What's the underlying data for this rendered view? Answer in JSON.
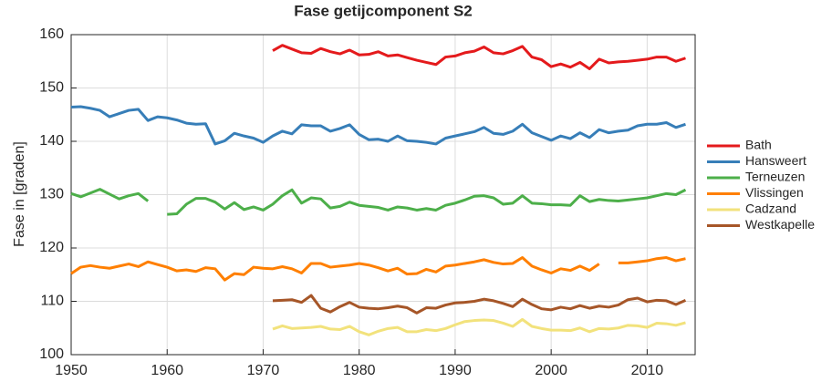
{
  "chart_data": {
    "type": "line",
    "title": "Fase getijcomponent S2",
    "ylabel": "Fase in [graden]",
    "x": [
      1950,
      1951,
      1952,
      1953,
      1954,
      1955,
      1956,
      1957,
      1958,
      1959,
      1960,
      1961,
      1962,
      1963,
      1964,
      1965,
      1966,
      1967,
      1968,
      1969,
      1970,
      1971,
      1972,
      1973,
      1974,
      1975,
      1976,
      1977,
      1978,
      1979,
      1980,
      1981,
      1982,
      1983,
      1984,
      1985,
      1986,
      1987,
      1988,
      1989,
      1990,
      1991,
      1992,
      1993,
      1994,
      1995,
      1996,
      1997,
      1998,
      1999,
      2000,
      2001,
      2002,
      2003,
      2004,
      2005,
      2006,
      2007,
      2008,
      2009,
      2010,
      2011,
      2012,
      2013,
      2014
    ],
    "series": [
      {
        "name": "Bath",
        "color": "#e41a1c",
        "values": [
          null,
          null,
          null,
          null,
          null,
          null,
          null,
          null,
          null,
          null,
          null,
          null,
          null,
          null,
          null,
          null,
          null,
          null,
          null,
          null,
          null,
          157,
          158,
          157.3,
          156.6,
          156.5,
          157.4,
          156.8,
          156.4,
          157.1,
          156.2,
          156.3,
          156.8,
          156,
          156.2,
          155.7,
          155.2,
          154.8,
          154.4,
          155.8,
          156,
          156.6,
          156.9,
          157.7,
          156.6,
          156.4,
          157,
          157.8,
          155.8,
          155.3,
          154,
          154.5,
          153.9,
          154.8,
          153.6,
          155.4,
          154.7,
          154.9,
          155,
          155.2,
          155.4,
          155.8,
          155.8,
          155,
          155.6
        ]
      },
      {
        "name": "Hansweert",
        "color": "#377eb8",
        "values": [
          146.4,
          146.5,
          146.2,
          145.8,
          144.6,
          145.2,
          145.8,
          146,
          143.9,
          144.6,
          144.4,
          144,
          143.4,
          143.2,
          143.3,
          139.5,
          140.1,
          141.5,
          141,
          140.6,
          139.8,
          141,
          141.9,
          141.4,
          143.1,
          142.9,
          142.9,
          141.9,
          142.4,
          143.1,
          141.3,
          140.3,
          140.4,
          140,
          141,
          140.1,
          140,
          139.8,
          139.5,
          140.6,
          141,
          141.4,
          141.8,
          142.6,
          141.5,
          141.3,
          141.9,
          143.2,
          141.6,
          140.9,
          140.2,
          141,
          140.5,
          141.6,
          140.7,
          142.2,
          141.6,
          141.9,
          142.1,
          142.9,
          143.2,
          143.2,
          143.5,
          142.6,
          143.2
        ]
      },
      {
        "name": "Terneuzen",
        "color": "#4daf4a",
        "values": [
          130.2,
          129.6,
          130.3,
          131,
          130.1,
          129.2,
          129.8,
          130.2,
          128.8,
          null,
          126.3,
          126.4,
          128.2,
          129.3,
          129.3,
          128.6,
          127.3,
          128.5,
          127.2,
          127.7,
          127.1,
          128.2,
          129.8,
          130.9,
          128.4,
          129.4,
          129.2,
          127.5,
          127.8,
          128.6,
          128,
          127.8,
          127.6,
          127.1,
          127.7,
          127.5,
          127.1,
          127.4,
          127.1,
          128,
          128.4,
          129,
          129.7,
          129.8,
          129.4,
          128.2,
          128.4,
          129.8,
          128.4,
          128.3,
          128.1,
          128.1,
          128,
          129.8,
          128.7,
          129.1,
          128.9,
          128.8,
          129,
          129.2,
          129.4,
          129.8,
          130.2,
          130,
          130.9
        ]
      },
      {
        "name": "Vlissingen",
        "color": "#ff7f00",
        "values": [
          115.2,
          116.4,
          116.7,
          116.4,
          116.2,
          116.6,
          117,
          116.5,
          117.4,
          116.9,
          116.4,
          115.7,
          115.9,
          115.6,
          116.3,
          116.1,
          114,
          115.2,
          115,
          116.4,
          116.2,
          116.1,
          116.5,
          116.1,
          115.3,
          117.1,
          117.1,
          116.4,
          116.6,
          116.8,
          117.1,
          116.8,
          116.3,
          115.7,
          116.2,
          115.1,
          115.2,
          116,
          115.5,
          116.6,
          116.8,
          117.1,
          117.4,
          117.8,
          117.3,
          117,
          117.1,
          118.2,
          116.6,
          115.9,
          115.3,
          116.1,
          115.8,
          116.6,
          115.8,
          117,
          null,
          117.2,
          117.2,
          117.4,
          117.6,
          118,
          118.2,
          117.6,
          118
        ]
      },
      {
        "name": "Cadzand",
        "color": "#f2e27c",
        "values": [
          null,
          null,
          null,
          null,
          null,
          null,
          null,
          null,
          null,
          null,
          null,
          null,
          null,
          null,
          null,
          null,
          null,
          null,
          null,
          null,
          null,
          104.8,
          105.4,
          104.9,
          105,
          105.1,
          105.3,
          104.8,
          104.7,
          105.3,
          104.3,
          103.7,
          104.4,
          104.9,
          105.1,
          104.3,
          104.3,
          104.7,
          104.5,
          104.9,
          105.6,
          106.2,
          106.4,
          106.5,
          106.4,
          105.9,
          105.3,
          106.6,
          105.3,
          104.9,
          104.6,
          104.6,
          104.5,
          105,
          104.3,
          104.9,
          104.8,
          105,
          105.5,
          105.4,
          105.1,
          105.9,
          105.8,
          105.5,
          106
        ]
      },
      {
        "name": "Westkapelle",
        "color": "#a65628",
        "values": [
          null,
          null,
          null,
          null,
          null,
          null,
          null,
          null,
          null,
          null,
          null,
          null,
          null,
          null,
          null,
          null,
          null,
          null,
          null,
          null,
          null,
          110.1,
          110.2,
          110.3,
          109.8,
          111.1,
          108.7,
          108,
          109,
          109.8,
          108.9,
          108.7,
          108.6,
          108.8,
          109.1,
          108.8,
          107.8,
          108.8,
          108.7,
          109.3,
          109.7,
          109.8,
          110,
          110.4,
          110.1,
          109.6,
          109,
          110.4,
          109.4,
          108.6,
          108.4,
          108.9,
          108.6,
          109.2,
          108.7,
          109.1,
          108.9,
          109.3,
          110.3,
          110.6,
          109.9,
          110.2,
          110.1,
          109.4,
          110.2
        ]
      }
    ],
    "xlim": [
      1950,
      2015
    ],
    "xticks": [
      1950,
      1960,
      1970,
      1980,
      1990,
      2000,
      2010
    ],
    "ylim": [
      100,
      160
    ],
    "yticks": [
      100,
      110,
      120,
      130,
      140,
      150,
      160
    ],
    "grid": true,
    "legend": "right"
  }
}
